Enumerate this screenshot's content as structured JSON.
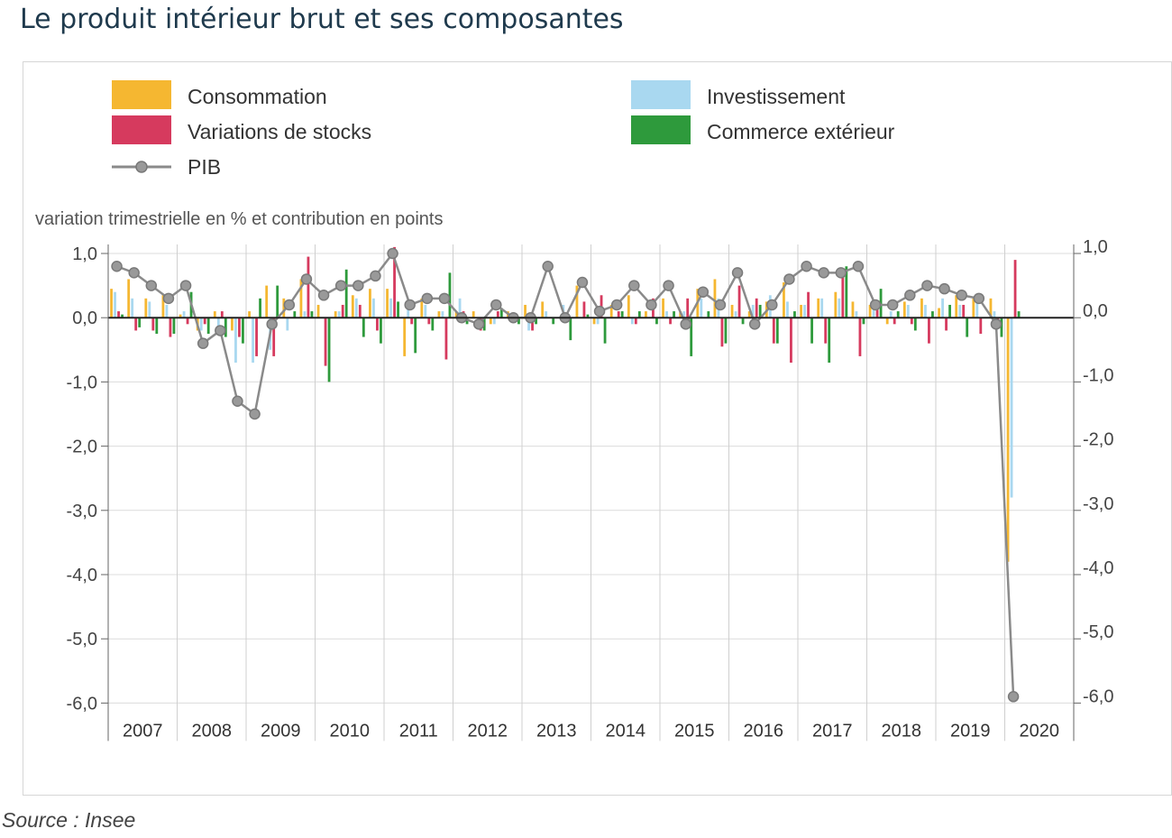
{
  "title": "Le produit intérieur brut et ses composantes",
  "source": "Source : Insee",
  "chart_data": {
    "type": "bar+line",
    "ylabel": "variation trimestrielle en % et contribution en points",
    "ylim": [
      -6.0,
      1.0
    ],
    "y_ticks_left": [
      "1,0",
      "0,0",
      "-1,0",
      "-2,0",
      "-3,0",
      "-4,0",
      "-5,0",
      "-6,0"
    ],
    "y_ticks_right": [
      "1,0",
      "0,0",
      "-1,0",
      "-2,0",
      "-3,0",
      "-4,0",
      "-5,0",
      "-6,0"
    ],
    "y_tick_values": [
      1,
      0,
      -1,
      -2,
      -3,
      -4,
      -5,
      -6
    ],
    "years": [
      "2007",
      "2008",
      "2009",
      "2010",
      "2011",
      "2012",
      "2013",
      "2014",
      "2015",
      "2016",
      "2017",
      "2018",
      "2019",
      "2020"
    ],
    "quarters_per_year": 4,
    "last_year_quarters": 1,
    "grid": true,
    "legend": [
      {
        "label": "Consommation",
        "color": "#f5b731",
        "kind": "bar"
      },
      {
        "label": "Investissement",
        "color": "#a9d8f0",
        "kind": "bar"
      },
      {
        "label": "Variations de stocks",
        "color": "#d63a5e",
        "kind": "bar"
      },
      {
        "label": "Commerce extérieur",
        "color": "#2e9a3c",
        "kind": "bar"
      },
      {
        "label": "PIB",
        "color": "#8a8a8a",
        "kind": "line"
      }
    ],
    "series": [
      {
        "name": "Consommation",
        "color": "#f5b731",
        "values": [
          0.45,
          0.6,
          0.3,
          0.35,
          0.05,
          -0.2,
          0.1,
          -0.2,
          0.1,
          0.5,
          0.3,
          0.6,
          0.2,
          0.1,
          0.35,
          0.45,
          0.45,
          -0.6,
          0.3,
          0.1,
          0.1,
          0.1,
          -0.1,
          0.1,
          0.2,
          0.25,
          0.0,
          0.5,
          -0.1,
          0.2,
          0.35,
          0.1,
          0.3,
          0.1,
          0.45,
          0.6,
          0.2,
          0.1,
          0.25,
          0.55,
          0.2,
          0.3,
          0.4,
          0.25,
          0.2,
          -0.1,
          0.25,
          0.3,
          0.15,
          0.35,
          0.3,
          0.3,
          -3.8
        ]
      },
      {
        "name": "Investissement",
        "color": "#a9d8f0",
        "values": [
          0.4,
          0.3,
          0.25,
          0.2,
          0.1,
          -0.2,
          -0.2,
          -0.7,
          -0.7,
          -0.5,
          -0.2,
          0.1,
          0.0,
          0.1,
          0.3,
          0.3,
          0.3,
          0.2,
          0.2,
          0.1,
          0.3,
          0.0,
          -0.1,
          0.0,
          -0.2,
          0.1,
          0.2,
          0.0,
          -0.1,
          0.0,
          -0.1,
          0.0,
          0.1,
          0.1,
          0.3,
          0.3,
          0.1,
          0.2,
          0.35,
          0.25,
          0.2,
          0.3,
          0.3,
          0.1,
          0.2,
          0.1,
          0.2,
          0.2,
          0.3,
          0.2,
          0.25,
          0.1,
          -2.8
        ]
      },
      {
        "name": "Variations de stocks",
        "color": "#d63a5e",
        "values": [
          0.1,
          -0.2,
          -0.2,
          -0.3,
          -0.1,
          -0.1,
          0.1,
          -0.3,
          -0.6,
          -0.6,
          0.0,
          0.95,
          -0.75,
          0.2,
          0.2,
          -0.2,
          1.1,
          -0.1,
          -0.1,
          -0.65,
          0.1,
          -0.2,
          0.1,
          0.0,
          -0.2,
          0.0,
          0.0,
          0.25,
          0.35,
          0.1,
          -0.1,
          0.3,
          -0.1,
          0.3,
          0.0,
          -0.45,
          0.5,
          0.3,
          -0.4,
          -0.7,
          0.4,
          -0.4,
          0.75,
          -0.6,
          0.2,
          -0.1,
          -0.1,
          -0.4,
          -0.2,
          0.2,
          -0.25,
          -0.1,
          0.9
        ]
      },
      {
        "name": "Commerce extérieur",
        "color": "#2e9a3c",
        "values": [
          0.05,
          -0.15,
          -0.25,
          -0.25,
          0.4,
          -0.25,
          -0.3,
          -0.4,
          0.3,
          0.5,
          0.1,
          0.1,
          -1.0,
          0.75,
          -0.3,
          -0.4,
          0.25,
          -0.55,
          -0.2,
          0.7,
          -0.1,
          -0.2,
          0.15,
          -0.1,
          -0.1,
          -0.1,
          -0.35,
          0.05,
          -0.4,
          0.1,
          0.1,
          -0.1,
          0.1,
          -0.6,
          0.1,
          -0.4,
          -0.1,
          0.2,
          -0.4,
          0.1,
          -0.4,
          -0.7,
          0.8,
          -0.1,
          0.45,
          0.1,
          -0.2,
          0.1,
          0.2,
          -0.3,
          0.0,
          -0.3,
          0.1
        ]
      },
      {
        "name": "PIB",
        "color": "#8a8a8a",
        "values": [
          0.8,
          0.7,
          0.5,
          0.3,
          0.5,
          -0.4,
          -0.2,
          -1.3,
          -1.5,
          -0.1,
          0.2,
          0.6,
          0.35,
          0.5,
          0.5,
          0.65,
          1.0,
          0.2,
          0.3,
          0.3,
          0.0,
          -0.1,
          0.2,
          0.0,
          0.0,
          0.8,
          0.0,
          0.55,
          0.1,
          0.2,
          0.5,
          0.2,
          0.5,
          -0.1,
          0.4,
          0.2,
          0.7,
          -0.1,
          0.2,
          0.6,
          0.8,
          0.7,
          0.7,
          0.8,
          0.2,
          0.2,
          0.35,
          0.5,
          0.45,
          0.35,
          0.3,
          -0.1,
          -5.9
        ]
      }
    ]
  }
}
